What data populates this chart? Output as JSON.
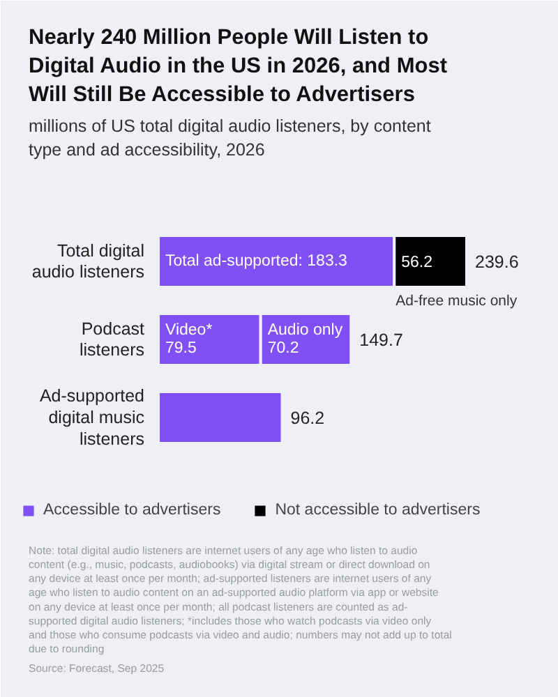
{
  "chart_data": {
    "type": "bar",
    "title": "Nearly 240 Million People Will Listen to Digital Audio in the US in 2026, and Most Will Still Be Accessible to Advertisers",
    "subtitle": "millions of US total digital audio listeners, by content type and ad accessibility, 2026",
    "categories": [
      "Total digital audio listeners",
      "Podcast listeners",
      "Ad-supported digital music listeners"
    ],
    "orientation": "horizontal",
    "stacked": true,
    "legend": "bottom",
    "series": [
      {
        "name": "Accessible to advertisers",
        "color": "#8050f5",
        "values": [
          183.3,
          79.5,
          96.2
        ],
        "value_labels": [
          "Total ad-supported: 183.3",
          "Video*\n79.5",
          null
        ]
      },
      {
        "color": "#8050f5",
        "values": [
          null,
          70.2,
          null
        ],
        "value_labels": [
          null,
          "Audio only\n70.2",
          null
        ]
      },
      {
        "name": "Not accessible to advertisers",
        "color": "#000000",
        "values": [
          56.2,
          null,
          null
        ],
        "value_labels": [
          "56.2",
          null,
          null
        ]
      }
    ],
    "totals": [
      "239.6",
      "149.7",
      "96.2"
    ],
    "annotations": [
      {
        "text": "Ad-free music only",
        "x": 183.3,
        "y": "Total digital audio listeners"
      },
      "Note: total digital audio listeners are internet users of any age who listen to audio content (e.g., music, podcasts, audiobooks) via digital stream or direct download on any device at least once per month; ad-supported listeners are internet users of any age who listen to audio content on an ad-supported audio platform via app or website on any device at least once per month; all podcast listeners are counted as ad-supported digital audio listeners; *includes those who watch podcasts via video only and those who consume podcasts via video and audio; numbers may not add up to total due to rounding",
      "Source: Forecast, Sep 2025"
    ]
  }
}
